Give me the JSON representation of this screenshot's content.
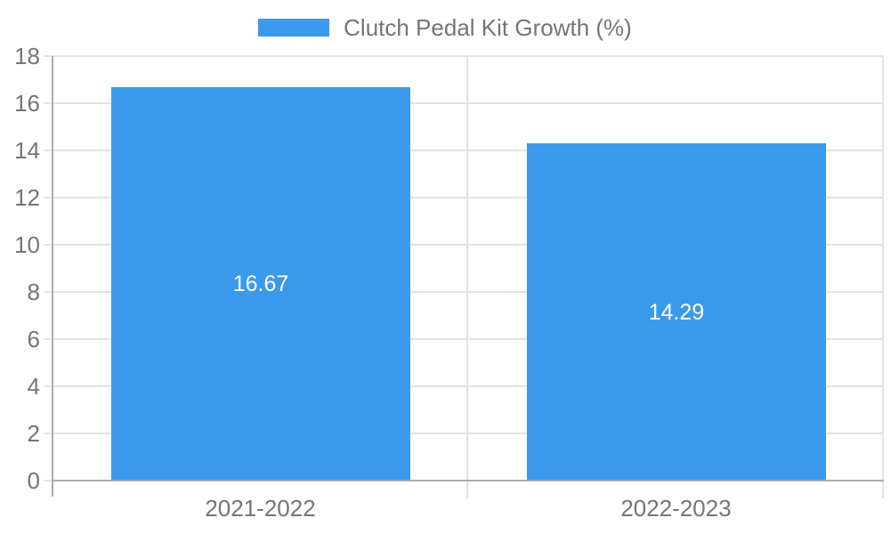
{
  "chart_data": {
    "type": "bar",
    "title": "",
    "xlabel": "",
    "ylabel": "",
    "categories": [
      "2021-2022",
      "2022-2023"
    ],
    "series": [
      {
        "name": "Clutch Pedal Kit Growth (%)",
        "values": [
          16.67,
          14.29
        ],
        "data_labels": [
          "16.67",
          "14.29"
        ]
      }
    ],
    "legend": {
      "label": "Clutch Pedal Kit Growth (%)",
      "position": "top"
    },
    "ylim": [
      0,
      18
    ],
    "ytick_step": 2,
    "yticks": [
      0,
      2,
      4,
      6,
      8,
      10,
      12,
      14,
      16,
      18
    ],
    "grid": true
  },
  "colors": {
    "bar": "#3B99EC",
    "grid": "#E3E3E3",
    "axis": "#ABABAB",
    "tick_label": "#757575",
    "data_label": "#FFFFFF",
    "background": "#FFFFFF"
  }
}
